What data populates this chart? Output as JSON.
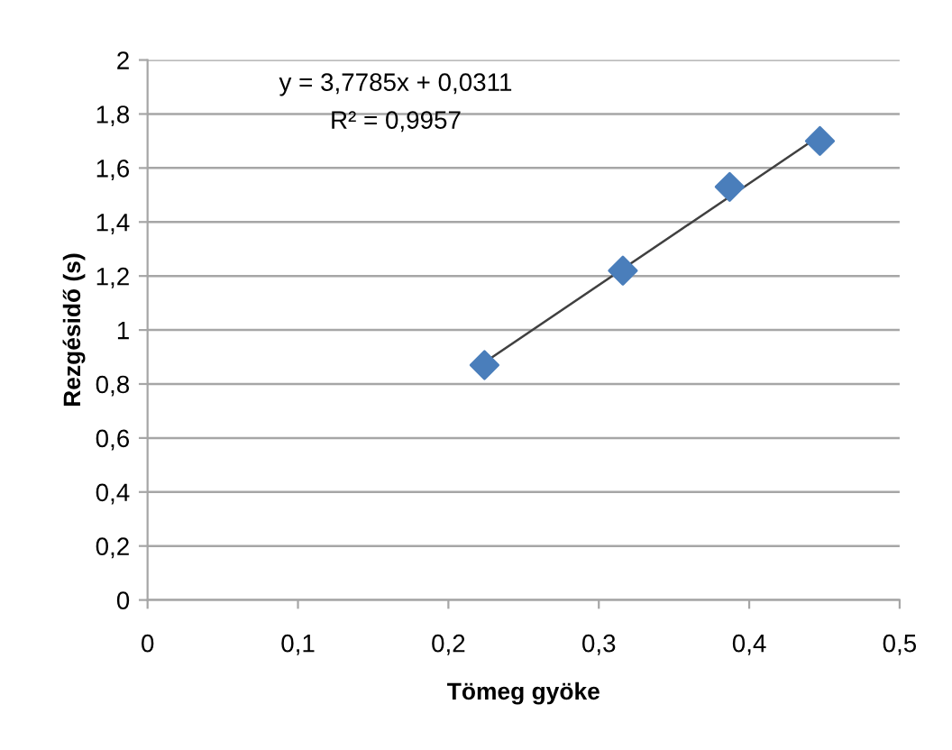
{
  "chart_data": {
    "type": "scatter",
    "xlabel": "Tömeg gyöke",
    "ylabel": "Rezgésidő (s)",
    "series": [
      {
        "color": "#4a7ebb",
        "marker": "diamond",
        "x": [
          0.224,
          0.316,
          0.387,
          0.447
        ],
        "values": [
          0.87,
          1.22,
          1.53,
          1.7
        ]
      },
      {
        "type": "line",
        "color": "#404040",
        "marker": "none",
        "line_style": "solid",
        "x": [
          0.224,
          0.447
        ],
        "values": [
          0.88,
          1.72
        ]
      }
    ],
    "annotations": [
      "y = 3,7785x + 0,0311",
      "R² = 0,9957"
    ],
    "xlim": [
      0,
      0.5
    ],
    "ylim": [
      0,
      2
    ],
    "xticks": [
      0,
      {
        "value": 0.1,
        "label": "0,1"
      },
      {
        "value": 0.2,
        "label": "0,2"
      },
      {
        "value": 0.3,
        "label": "0,3"
      },
      {
        "value": 0.4,
        "label": "0,4"
      },
      {
        "value": 0.5,
        "label": "0,5"
      }
    ],
    "yticks": [
      0,
      {
        "value": 0.2,
        "label": "0,2"
      },
      {
        "value": 0.4,
        "label": "0,4"
      },
      {
        "value": 0.6,
        "label": "0,6"
      },
      {
        "value": 0.8,
        "label": "0,8"
      },
      1,
      {
        "value": 1.2,
        "label": "1,2"
      },
      {
        "value": 1.4,
        "label": "1,4"
      },
      {
        "value": 1.6,
        "label": "1,6"
      },
      {
        "value": 1.8,
        "label": "1,8"
      },
      2
    ],
    "grid": "y",
    "legend": false
  }
}
